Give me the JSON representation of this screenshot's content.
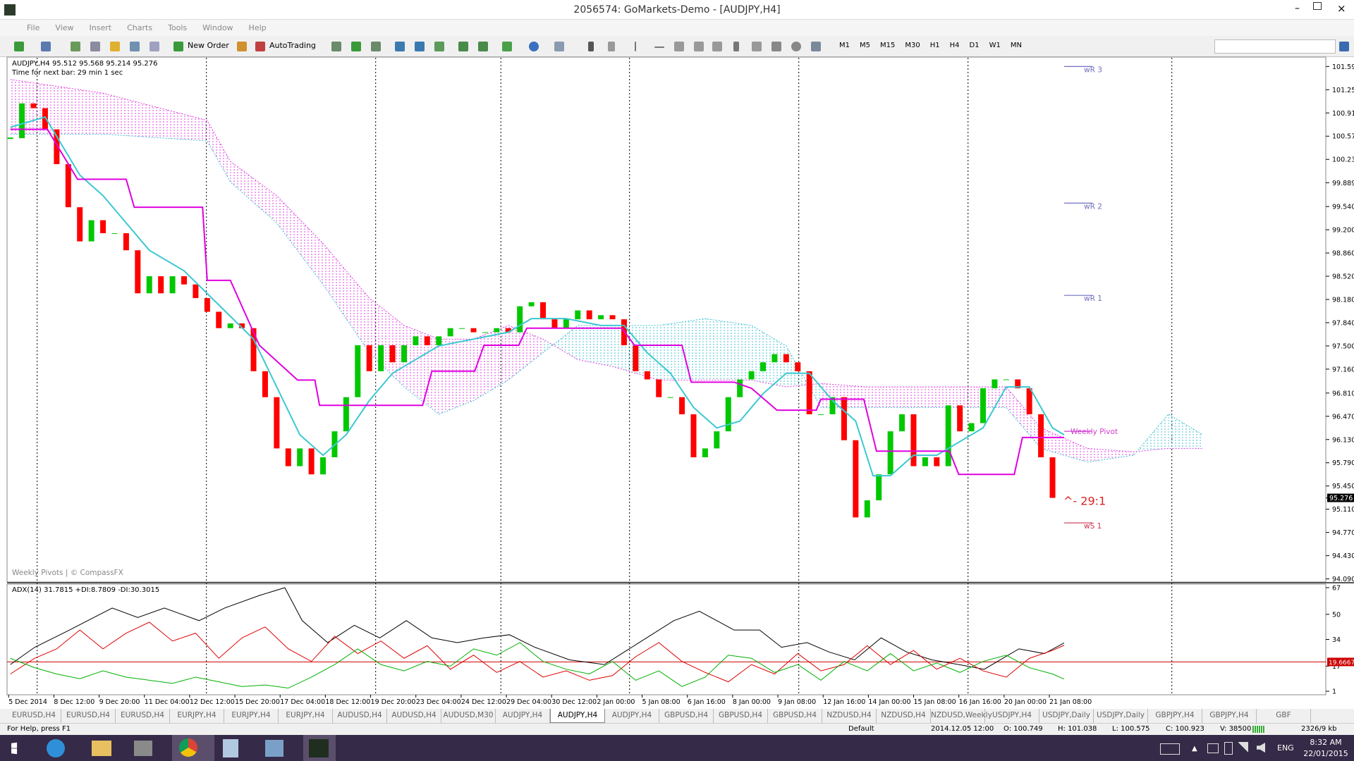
{
  "window": {
    "title": "2056574: GoMarkets-Demo - [AUDJPY,H4]",
    "menu": [
      "File",
      "View",
      "Insert",
      "Charts",
      "Tools",
      "Window",
      "Help"
    ],
    "toolbar": [
      "New Order",
      "AutoTrading"
    ],
    "timeframes": [
      "M1",
      "M5",
      "M15",
      "M30",
      "H1",
      "H4",
      "D1",
      "W1",
      "MN"
    ]
  },
  "chart_data": [
    {
      "type": "candlestick",
      "title": "AUDJPY,H4  95.512 95.568 95.214 95.276",
      "subtitle": "Time for next bar: 29 min 1 sec",
      "footnote": "Weekly Pivots | © CompassFX",
      "categories": [
        "5 Dec 2014",
        "8 Dec 12:00",
        "9 Dec 20:00",
        "11 Dec 04:00",
        "12 Dec 12:00",
        "15 Dec 20:00",
        "17 Dec 04:00",
        "18 Dec 12:00",
        "19 Dec 20:00",
        "23 Dec 04:00",
        "24 Dec 12:00",
        "29 Dec 04:00",
        "30 Dec 12:00",
        "2 Jan 00:00",
        "5 Jan 08:00",
        "6 Jan 16:00",
        "8 Jan 00:00",
        "9 Jan 08:00",
        "12 Jan 16:00",
        "14 Jan 00:00",
        "15 Jan 08:00",
        "16 Jan 16:00",
        "20 Jan 00:00",
        "21 Jan 08:00"
      ],
      "close": [
        100.54,
        101.05,
        100.98,
        100.67,
        100.16,
        99.53,
        99.03,
        99.34,
        99.15,
        99.15,
        98.9,
        98.27,
        98.52,
        98.27,
        98.52,
        98.4,
        98.2,
        98.0,
        97.76,
        97.83,
        97.76,
        97.13,
        96.75,
        96.0,
        95.74,
        96.0,
        95.62,
        95.87,
        96.25,
        96.75,
        97.51,
        97.13,
        97.51,
        97.26,
        97.51,
        97.64,
        97.51,
        97.64,
        97.76,
        97.76,
        97.7,
        97.7,
        97.76,
        97.7,
        98.08,
        98.14,
        97.89,
        97.76,
        97.89,
        98.02,
        97.89,
        97.95,
        97.89,
        97.51,
        97.13,
        97.01,
        96.75,
        96.75,
        96.5,
        95.87,
        96.0,
        96.25,
        96.75,
        97.01,
        97.13,
        97.26,
        97.38,
        97.26,
        97.13,
        96.5,
        96.5,
        96.75,
        96.12,
        94.99,
        95.24,
        95.62,
        96.25,
        96.5,
        95.74,
        95.87,
        95.74,
        96.63,
        96.25,
        96.37,
        96.88,
        97.01,
        97.01,
        96.88,
        96.5,
        95.87,
        95.276
      ],
      "up_color": "#00c800",
      "down_color": "#ff0000",
      "ylim": [
        94.065,
        101.707
      ],
      "yticks": [
        {
          "value": 101.59,
          "label": "101.590"
        },
        {
          "value": 101.25,
          "label": "101.250"
        },
        {
          "value": 100.91,
          "label": "100.910"
        },
        {
          "value": 100.57,
          "label": "100.570"
        },
        {
          "value": 100.23,
          "label": "100.230"
        },
        {
          "value": 99.889,
          "label": "99.889"
        },
        {
          "value": 99.54,
          "label": "99.540"
        },
        {
          "value": 99.2,
          "label": "99.200"
        },
        {
          "value": 98.86,
          "label": "98.860"
        },
        {
          "value": 98.52,
          "label": "98.520"
        },
        {
          "value": 98.18,
          "label": "98.180"
        },
        {
          "value": 97.84,
          "label": "97.840"
        },
        {
          "value": 97.5,
          "label": "97.500"
        },
        {
          "value": 97.16,
          "label": "97.160"
        },
        {
          "value": 96.81,
          "label": "96.810"
        },
        {
          "value": 96.47,
          "label": "96.470"
        },
        {
          "value": 96.13,
          "label": "96.130"
        },
        {
          "value": 95.79,
          "label": "95.790"
        },
        {
          "value": 95.45,
          "label": "95.450"
        },
        {
          "value": 95.11,
          "label": "95.110"
        },
        {
          "value": 94.77,
          "label": "94.770"
        },
        {
          "value": 94.43,
          "label": "94.430"
        },
        {
          "value": 94.09,
          "label": "94.090"
        }
      ],
      "current_price": {
        "value": 95.276,
        "label": "95.276"
      },
      "tenkan": {
        "color": "#3cc8d2",
        "x": [
          0,
          3,
          6,
          8,
          10,
          12,
          15,
          18,
          21,
          23,
          25,
          27,
          29,
          31,
          33,
          35,
          37,
          40,
          43,
          45,
          48,
          51,
          53,
          55,
          57,
          59,
          61,
          63,
          65,
          67,
          69,
          71,
          73,
          74.5,
          76,
          78,
          80,
          82,
          84,
          86,
          88,
          90,
          91
        ],
        "values": [
          100.7,
          100.85,
          100.0,
          99.7,
          99.3,
          98.9,
          98.6,
          98.1,
          97.6,
          96.9,
          96.2,
          95.9,
          96.2,
          96.7,
          97.1,
          97.3,
          97.5,
          97.6,
          97.7,
          97.9,
          97.9,
          97.8,
          97.8,
          97.4,
          97.1,
          96.6,
          96.3,
          96.4,
          96.8,
          97.1,
          97.1,
          96.7,
          96.4,
          95.6,
          95.6,
          95.9,
          95.9,
          96.1,
          96.3,
          96.9,
          96.9,
          96.3,
          96.2
        ]
      },
      "kijun": {
        "color": "#e000e0",
        "x": [
          0,
          3.2,
          5.8,
          10,
          10.7,
          16.6,
          17,
          19,
          21.5,
          24.8,
          26.3,
          26.7,
          35.6,
          36.4,
          40.1,
          40.9,
          43.9,
          44.6,
          52.8,
          53.9,
          58,
          58.8,
          62.5,
          64,
          66.2,
          69.6,
          70,
          73.7,
          74.8,
          81.1,
          81.9,
          86.7,
          87.4,
          91
        ],
        "values": [
          100.67,
          100.67,
          99.94,
          99.94,
          99.53,
          99.53,
          98.46,
          98.46,
          97.51,
          97.0,
          97.0,
          96.63,
          96.63,
          97.13,
          97.13,
          97.51,
          97.51,
          97.76,
          97.76,
          97.51,
          97.51,
          96.97,
          96.97,
          96.88,
          96.56,
          96.56,
          96.72,
          96.72,
          95.96,
          95.96,
          95.62,
          95.62,
          96.16,
          96.16
        ]
      },
      "cloud": {
        "bear_color": "#e040e0",
        "bull_color": "#40c0d0",
        "x": [
          0,
          8,
          17,
          19,
          23,
          27,
          31,
          34,
          37,
          40,
          43,
          46,
          49,
          52,
          56,
          60,
          64,
          67,
          70,
          74,
          78,
          82,
          86,
          89,
          93,
          97,
          100,
          103
        ],
        "span_a": [
          101.4,
          101.2,
          100.8,
          100.2,
          99.7,
          99.0,
          98.2,
          97.8,
          97.6,
          97.6,
          97.8,
          97.6,
          97.3,
          97.2,
          97.0,
          97.0,
          97.0,
          96.9,
          96.95,
          96.9,
          96.9,
          96.9,
          96.9,
          96.3,
          96.0,
          95.95,
          96.0,
          96.0
        ],
        "span_b": [
          100.6,
          100.6,
          100.5,
          99.9,
          99.3,
          98.4,
          97.4,
          96.9,
          96.5,
          96.7,
          97.0,
          97.4,
          97.8,
          97.8,
          97.8,
          97.9,
          97.8,
          97.5,
          96.6,
          96.6,
          96.6,
          96.6,
          96.6,
          96.0,
          95.8,
          95.9,
          96.5,
          96.2
        ]
      },
      "pivots": [
        {
          "label": "wR 3",
          "value": 101.59,
          "color": "#7070c0"
        },
        {
          "label": "wR 2",
          "value": 99.59,
          "color": "#7070c0"
        },
        {
          "label": "wR 1",
          "value": 98.24,
          "color": "#7070c0"
        },
        {
          "label": "Weekly Pivot",
          "value": 96.25,
          "color": "#d040d0"
        },
        {
          "label": "wS 1",
          "value": 94.91,
          "color": "#cc3050"
        }
      ],
      "annotation": {
        "label": "^- 29:1",
        "value": 95.276,
        "color": "#dd2020"
      }
    },
    {
      "type": "line",
      "title": "ADX(14) 31.7815 +DI:8.7809 -DI:30.3015",
      "ylim": [
        1,
        67
      ],
      "yticks": [
        67,
        50,
        34,
        17,
        1
      ],
      "level": {
        "value": 19.6667,
        "color": "#cc0000"
      },
      "series": [
        {
          "key": "adx",
          "color": "#000000",
          "x": [
            0,
            2.1,
            5.1,
            8.8,
            11,
            13.3,
            16.3,
            18.5,
            21.5,
            23.7,
            25.2,
            27.4,
            29.7,
            31.9,
            34.2,
            36.4,
            38.6,
            40.9,
            43.1,
            45.3,
            48.3,
            51.3,
            54.3,
            57.3,
            59.5,
            62.5,
            64.7,
            66.6,
            68.8,
            70.7,
            72.9,
            75.2,
            77.4,
            79.6,
            81.9,
            84.1,
            87.1,
            89.3,
            91
          ],
          "values": [
            18,
            29,
            40,
            54,
            48,
            54,
            46,
            54,
            62,
            67,
            46,
            32,
            43,
            35,
            46,
            35,
            32,
            35,
            37,
            29,
            21,
            18,
            32,
            46,
            52,
            40,
            40,
            29,
            32,
            26,
            21,
            35,
            26,
            21,
            18,
            15,
            28,
            25,
            31.7815
          ]
        },
        {
          "key": "minus_di",
          "color": "#dd0000",
          "x": [
            0,
            2.1,
            4,
            6,
            8,
            10,
            12,
            14,
            16,
            18,
            20,
            22,
            24,
            26,
            28,
            30,
            32,
            34,
            36,
            38,
            40,
            42,
            44,
            46,
            48,
            50,
            52,
            54,
            56,
            58,
            60,
            62,
            64,
            66,
            68,
            70,
            72,
            74,
            76,
            78,
            80,
            82,
            84,
            86,
            88,
            90,
            91
          ],
          "values": [
            12,
            22,
            28,
            40,
            28,
            38,
            45,
            33,
            38,
            22,
            35,
            42,
            28,
            20,
            36,
            25,
            33,
            22,
            30,
            15,
            24,
            13,
            20,
            10,
            14,
            8,
            11,
            23,
            32,
            20,
            13,
            7,
            18,
            12,
            25,
            14,
            18,
            30,
            18,
            27,
            15,
            22,
            14,
            10,
            22,
            27,
            30.3015
          ]
        },
        {
          "key": "plus_di",
          "color": "#00b000",
          "x": [
            0,
            2.1,
            4,
            6,
            8,
            10,
            12,
            14,
            16,
            18,
            20,
            22,
            24,
            26,
            28,
            30,
            32,
            34,
            36,
            38,
            40,
            42,
            44,
            46,
            48,
            50,
            52,
            54,
            56,
            58,
            60,
            62,
            64,
            66,
            68,
            70,
            72,
            74,
            76,
            78,
            80,
            82,
            84,
            86,
            88,
            90,
            91
          ],
          "values": [
            22,
            16,
            12,
            9,
            14,
            10,
            8,
            6,
            10,
            7,
            4,
            5,
            3,
            10,
            18,
            28,
            18,
            14,
            20,
            17,
            28,
            24,
            32,
            20,
            15,
            12,
            20,
            8,
            14,
            4,
            10,
            24,
            22,
            13,
            18,
            8,
            20,
            14,
            25,
            14,
            19,
            13,
            20,
            24,
            16,
            12,
            8.7809
          ]
        }
      ]
    }
  ],
  "tabs": [
    "EURUSD,H4",
    "EURUSD,H4",
    "EURUSD,H4",
    "EURJPY,H4",
    "EURJPY,H4",
    "EURJPY,H4",
    "AUDUSD,H4",
    "AUDUSD,H4",
    "AUDUSD,M30",
    "AUDJPY,H4",
    "AUDJPY,H4",
    "AUDJPY,H4",
    "GBPUSD,H4",
    "GBPUSD,H4",
    "GBPUSD,H4",
    "NZDUSD,H4",
    "NZDUSD,H4",
    "NZDUSD,Weekly",
    "USDJPY,H4",
    "USDJPY,Daily",
    "USDJPY,Daily",
    "GBPJPY,H4",
    "GBPJPY,H4",
    "GBF"
  ],
  "active_tab": 10,
  "status_bar": {
    "help": "For Help, press F1",
    "profile": "Default",
    "time": "2014.12.05 12:00",
    "open": "O: 100.749",
    "high": "H: 101.038",
    "low": "L: 100.575",
    "close": "C: 100.923",
    "volume": "V: 38500",
    "traffic": "2326/9 kb"
  },
  "taskbar": {
    "language": "ENG",
    "clock": "8:32 AM",
    "date": "22/01/2015"
  }
}
